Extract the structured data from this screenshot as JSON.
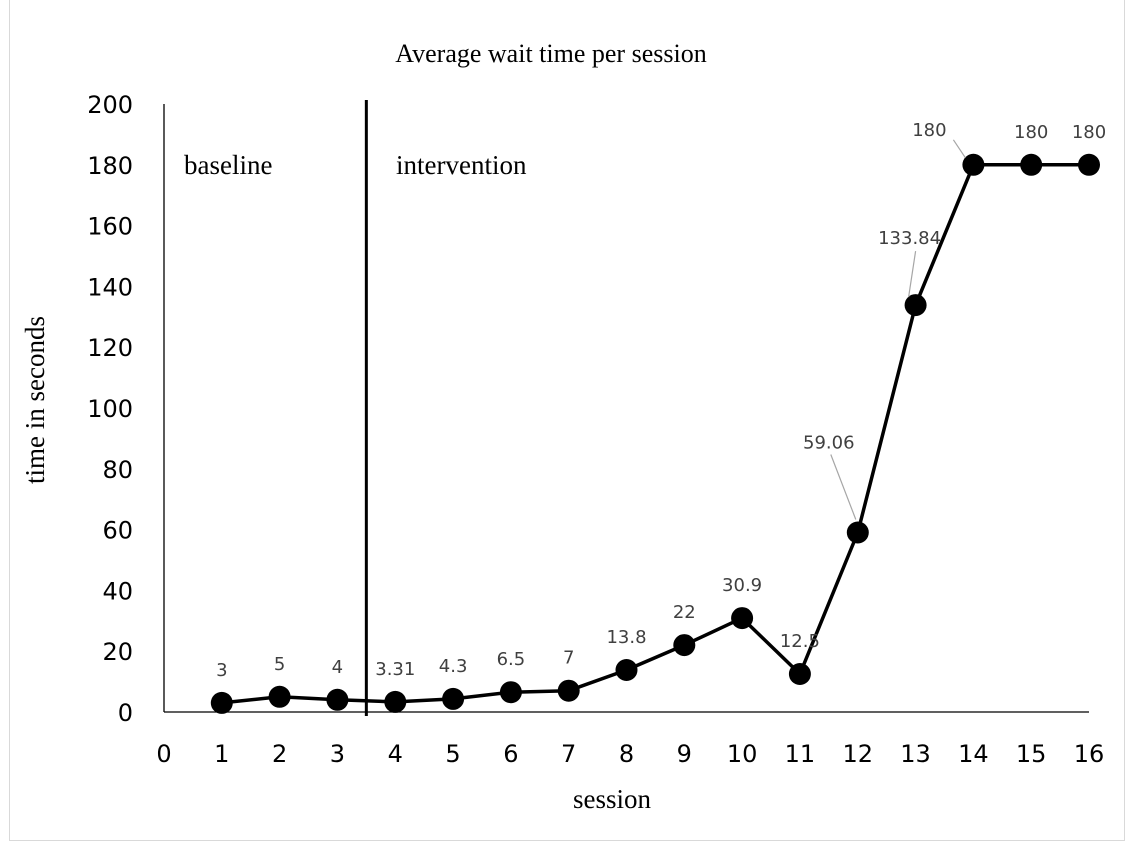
{
  "chart_data": {
    "type": "line",
    "title": "Average wait time per session",
    "xlabel": "session",
    "ylabel": "time in seconds",
    "x": [
      1,
      2,
      3,
      4,
      5,
      6,
      7,
      8,
      9,
      10,
      11,
      12,
      13,
      14,
      15,
      16
    ],
    "values": [
      3,
      5,
      4,
      3.31,
      4.3,
      6.5,
      7,
      13.8,
      22,
      30.9,
      12.5,
      59.06,
      133.84,
      180,
      180,
      180
    ],
    "data_labels": [
      "3",
      "5",
      "4",
      "3.31",
      "4.3",
      "6.5",
      "7",
      "13.8",
      "22",
      "30.9",
      "12.5",
      "59.06",
      "133.84",
      "180",
      "180",
      "180"
    ],
    "xlim": [
      0,
      16
    ],
    "ylim": [
      0,
      200
    ],
    "x_ticks": [
      "0",
      "1",
      "2",
      "3",
      "4",
      "5",
      "6",
      "7",
      "8",
      "9",
      "10",
      "11",
      "12",
      "13",
      "14",
      "15",
      "16"
    ],
    "y_ticks": [
      "0",
      "20",
      "40",
      "60",
      "80",
      "100",
      "120",
      "140",
      "160",
      "180",
      "200"
    ],
    "grid": false,
    "legend": "none",
    "phase_change_x": 3.5,
    "phases": [
      "baseline",
      "intervention"
    ],
    "line_color": "#000000",
    "marker_color": "#000000"
  }
}
